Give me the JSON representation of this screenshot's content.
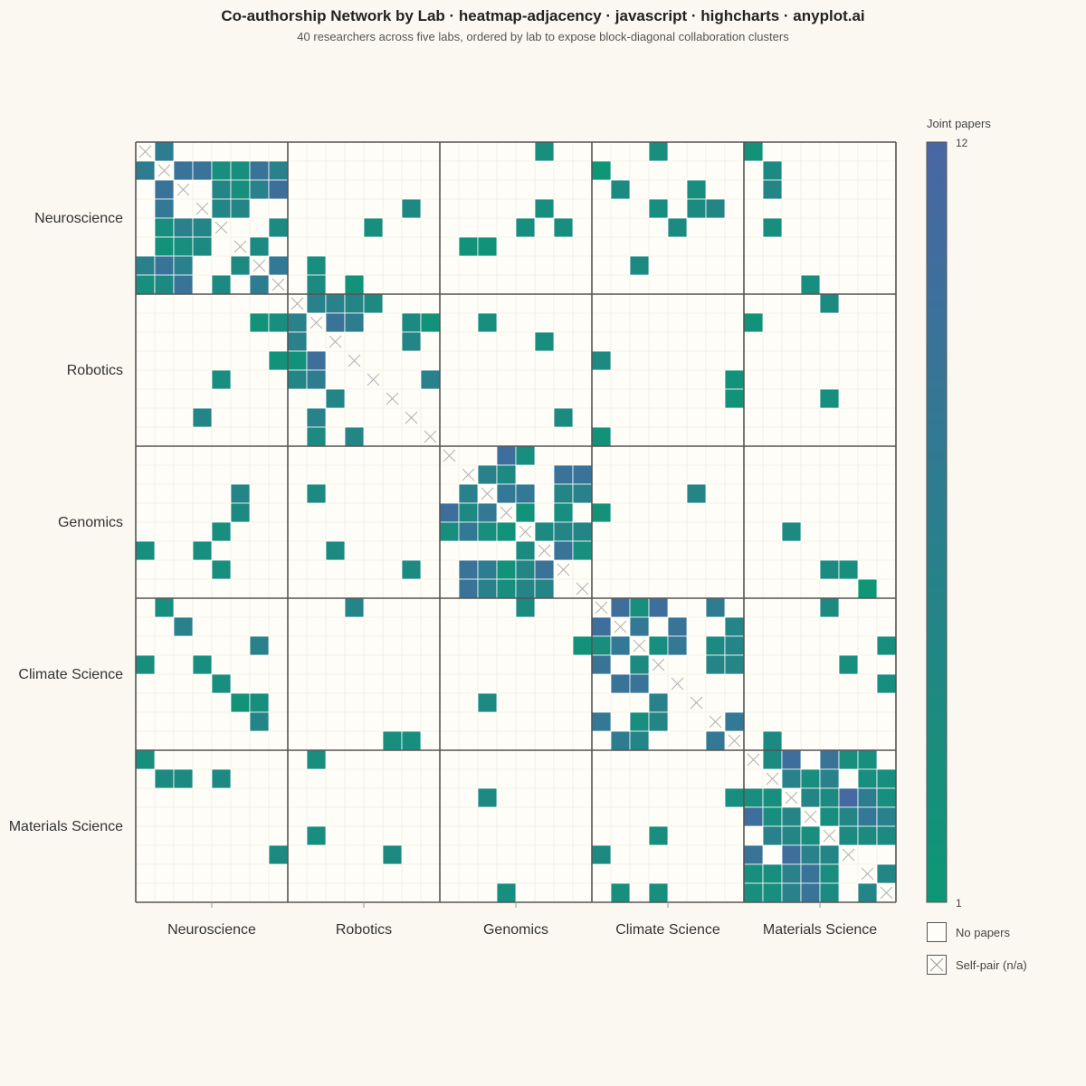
{
  "title": "Co-authorship Network by Lab · heatmap-adjacency · javascript · highcharts · anyplot.ai",
  "subtitle": "40 researchers across five labs, ordered by lab to expose block-diagonal collaboration clusters",
  "colors": {
    "background": "#faf8f1",
    "empty_cell": "#fefdf7",
    "scale_min": "#0d9775",
    "scale_max": "#4966a5",
    "grid": "#ede9d6",
    "block_border": "#555555",
    "self_pair": "#b0b0b0"
  },
  "legend": {
    "title": "Joint papers",
    "min_label": "1",
    "max_label": "12",
    "no_papers_label": "No papers",
    "self_pair_label": "Self-pair (n/a)"
  },
  "chart_data": {
    "type": "heatmap",
    "title": "Co-authorship Network by Lab · heatmap-adjacency · javascript · highcharts · anyplot.ai",
    "subtitle": "40 researchers across five labs, ordered by lab to expose block-diagonal collaboration clusters",
    "groups": [
      "Neuroscience",
      "Robotics",
      "Genomics",
      "Climate Science",
      "Materials Science"
    ],
    "group_size": 8,
    "node_count": 40,
    "value_range": [
      1,
      12
    ],
    "diagonal": "self-pair",
    "note_on_values": "cell values are joint-paper counts estimated from color; 0 = no papers",
    "matrix": [
      [
        0,
        7,
        0,
        0,
        0,
        0,
        0,
        0,
        0,
        0,
        0,
        0,
        0,
        0,
        0,
        0,
        0,
        0,
        0,
        0,
        0,
        3,
        0,
        0,
        0,
        0,
        0,
        3,
        0,
        0,
        0,
        0,
        2,
        0,
        0,
        0,
        0,
        0,
        0,
        0
      ],
      [
        7,
        0,
        9,
        9,
        3,
        3,
        9,
        6,
        0,
        0,
        0,
        0,
        0,
        0,
        0,
        0,
        0,
        0,
        0,
        0,
        0,
        0,
        0,
        0,
        1,
        0,
        0,
        0,
        0,
        0,
        0,
        0,
        0,
        4,
        0,
        0,
        0,
        0,
        0,
        0
      ],
      [
        0,
        9,
        0,
        0,
        5,
        3,
        6,
        10,
        0,
        0,
        0,
        0,
        0,
        0,
        0,
        0,
        0,
        0,
        0,
        0,
        0,
        0,
        0,
        0,
        0,
        4,
        0,
        0,
        0,
        3,
        0,
        0,
        0,
        5,
        0,
        0,
        0,
        0,
        0,
        0
      ],
      [
        0,
        8,
        0,
        0,
        5,
        5,
        0,
        0,
        0,
        0,
        0,
        0,
        0,
        0,
        4,
        0,
        0,
        0,
        0,
        0,
        0,
        3,
        0,
        0,
        0,
        0,
        0,
        3,
        0,
        4,
        5,
        0,
        0,
        0,
        0,
        0,
        0,
        0,
        0,
        0
      ],
      [
        0,
        3,
        6,
        5,
        0,
        0,
        0,
        4,
        0,
        0,
        0,
        0,
        3,
        0,
        0,
        0,
        0,
        0,
        0,
        0,
        3,
        0,
        3,
        0,
        0,
        0,
        0,
        0,
        4,
        0,
        0,
        0,
        0,
        3,
        0,
        0,
        0,
        0,
        0,
        0
      ],
      [
        0,
        2,
        3,
        4,
        0,
        0,
        4,
        0,
        0,
        0,
        0,
        0,
        0,
        0,
        0,
        0,
        0,
        2,
        2,
        0,
        0,
        0,
        0,
        0,
        0,
        0,
        0,
        0,
        0,
        0,
        0,
        0,
        0,
        0,
        0,
        0,
        0,
        0,
        0,
        0
      ],
      [
        6,
        9,
        6,
        0,
        0,
        4,
        0,
        8,
        0,
        3,
        0,
        0,
        0,
        0,
        0,
        0,
        0,
        0,
        0,
        0,
        0,
        0,
        0,
        0,
        0,
        0,
        4,
        0,
        0,
        0,
        0,
        0,
        0,
        0,
        0,
        0,
        0,
        0,
        0,
        0
      ],
      [
        3,
        4,
        9,
        0,
        4,
        0,
        7,
        0,
        0,
        4,
        0,
        2,
        0,
        0,
        0,
        0,
        0,
        0,
        0,
        0,
        0,
        0,
        0,
        0,
        0,
        0,
        0,
        0,
        0,
        0,
        0,
        0,
        0,
        0,
        0,
        3,
        0,
        0,
        0,
        0
      ],
      [
        0,
        0,
        0,
        0,
        0,
        0,
        0,
        0,
        0,
        6,
        6,
        5,
        4,
        0,
        0,
        0,
        0,
        0,
        0,
        0,
        0,
        0,
        0,
        0,
        0,
        0,
        0,
        0,
        0,
        0,
        0,
        0,
        0,
        0,
        0,
        0,
        4,
        0,
        0,
        0
      ],
      [
        0,
        0,
        0,
        0,
        0,
        0,
        2,
        3,
        6,
        0,
        9,
        7,
        0,
        0,
        4,
        2,
        0,
        0,
        3,
        0,
        0,
        0,
        0,
        0,
        0,
        0,
        0,
        0,
        0,
        0,
        0,
        0,
        2,
        0,
        0,
        0,
        0,
        0,
        0,
        0
      ],
      [
        0,
        0,
        0,
        0,
        0,
        0,
        0,
        0,
        6,
        0,
        0,
        0,
        0,
        0,
        5,
        0,
        0,
        0,
        0,
        0,
        0,
        3,
        0,
        0,
        0,
        0,
        0,
        0,
        0,
        0,
        0,
        0,
        0,
        0,
        0,
        0,
        0,
        0,
        0,
        0
      ],
      [
        0,
        0,
        0,
        0,
        0,
        0,
        0,
        2,
        2,
        10,
        0,
        0,
        0,
        0,
        0,
        0,
        0,
        0,
        0,
        0,
        0,
        0,
        0,
        0,
        4,
        0,
        0,
        0,
        0,
        0,
        0,
        0,
        0,
        0,
        0,
        0,
        0,
        0,
        0,
        0
      ],
      [
        0,
        0,
        0,
        0,
        3,
        0,
        0,
        0,
        5,
        7,
        0,
        0,
        0,
        0,
        0,
        6,
        0,
        0,
        0,
        0,
        0,
        0,
        0,
        0,
        0,
        0,
        0,
        0,
        0,
        0,
        0,
        2,
        0,
        0,
        0,
        0,
        0,
        0,
        0,
        0
      ],
      [
        0,
        0,
        0,
        0,
        0,
        0,
        0,
        0,
        0,
        0,
        5,
        0,
        0,
        0,
        0,
        0,
        0,
        0,
        0,
        0,
        0,
        0,
        0,
        0,
        0,
        0,
        0,
        0,
        0,
        0,
        0,
        2,
        0,
        0,
        0,
        0,
        3,
        0,
        0,
        0
      ],
      [
        0,
        0,
        0,
        5,
        0,
        0,
        0,
        0,
        0,
        6,
        0,
        0,
        0,
        0,
        0,
        0,
        0,
        0,
        0,
        0,
        0,
        0,
        4,
        0,
        0,
        0,
        0,
        0,
        0,
        0,
        0,
        0,
        0,
        0,
        0,
        0,
        0,
        0,
        0,
        0
      ],
      [
        0,
        0,
        0,
        0,
        0,
        0,
        0,
        0,
        0,
        4,
        0,
        5,
        0,
        0,
        0,
        0,
        0,
        0,
        0,
        0,
        0,
        0,
        0,
        0,
        2,
        0,
        0,
        0,
        0,
        0,
        0,
        0,
        0,
        0,
        0,
        0,
        0,
        0,
        0,
        0
      ],
      [
        0,
        0,
        0,
        0,
        0,
        0,
        0,
        0,
        0,
        0,
        0,
        0,
        0,
        0,
        0,
        0,
        0,
        0,
        0,
        10,
        3,
        0,
        0,
        0,
        0,
        0,
        0,
        0,
        0,
        0,
        0,
        0,
        0,
        0,
        0,
        0,
        0,
        0,
        0,
        0
      ],
      [
        0,
        0,
        0,
        0,
        0,
        0,
        0,
        0,
        0,
        0,
        0,
        0,
        0,
        0,
        0,
        0,
        0,
        0,
        6,
        4,
        0,
        0,
        9,
        9,
        0,
        0,
        0,
        0,
        0,
        0,
        0,
        0,
        0,
        0,
        0,
        0,
        0,
        0,
        0,
        0
      ],
      [
        0,
        0,
        0,
        0,
        0,
        5,
        0,
        0,
        0,
        4,
        0,
        0,
        0,
        0,
        0,
        0,
        0,
        6,
        0,
        8,
        8,
        0,
        5,
        6,
        0,
        0,
        0,
        0,
        0,
        5,
        0,
        0,
        0,
        0,
        0,
        0,
        0,
        0,
        0,
        0
      ],
      [
        0,
        0,
        0,
        0,
        0,
        4,
        0,
        0,
        0,
        0,
        0,
        0,
        0,
        0,
        0,
        0,
        10,
        4,
        8,
        0,
        2,
        0,
        3,
        0,
        2,
        0,
        0,
        0,
        0,
        0,
        0,
        0,
        0,
        0,
        0,
        0,
        0,
        0,
        0,
        0
      ],
      [
        0,
        0,
        0,
        0,
        3,
        0,
        0,
        0,
        0,
        0,
        0,
        0,
        0,
        0,
        0,
        0,
        3,
        8,
        3,
        2,
        0,
        4,
        5,
        5,
        0,
        0,
        0,
        0,
        0,
        0,
        0,
        0,
        0,
        0,
        4,
        0,
        0,
        0,
        0,
        0
      ],
      [
        3,
        0,
        0,
        3,
        0,
        0,
        0,
        0,
        0,
        0,
        4,
        0,
        0,
        0,
        0,
        0,
        0,
        0,
        0,
        0,
        4,
        0,
        9,
        3,
        0,
        0,
        0,
        0,
        0,
        0,
        0,
        0,
        0,
        0,
        0,
        0,
        0,
        0,
        0,
        0
      ],
      [
        0,
        0,
        0,
        0,
        3,
        0,
        0,
        0,
        0,
        0,
        0,
        0,
        0,
        0,
        4,
        0,
        0,
        9,
        7,
        2,
        5,
        9,
        0,
        0,
        0,
        0,
        0,
        0,
        0,
        0,
        0,
        0,
        0,
        0,
        0,
        0,
        4,
        3,
        0,
        0
      ],
      [
        0,
        0,
        0,
        0,
        0,
        0,
        0,
        0,
        0,
        0,
        0,
        0,
        0,
        0,
        0,
        0,
        0,
        9,
        6,
        3,
        5,
        5,
        0,
        0,
        0,
        0,
        0,
        0,
        0,
        0,
        0,
        0,
        0,
        0,
        0,
        0,
        0,
        0,
        1,
        0
      ],
      [
        0,
        3,
        0,
        0,
        0,
        0,
        0,
        0,
        0,
        0,
        0,
        5,
        0,
        0,
        0,
        0,
        0,
        0,
        0,
        0,
        4,
        0,
        0,
        0,
        0,
        10,
        3,
        10,
        0,
        0,
        7,
        0,
        0,
        0,
        0,
        0,
        4,
        0,
        0,
        0
      ],
      [
        0,
        0,
        6,
        0,
        0,
        0,
        0,
        0,
        0,
        0,
        0,
        0,
        0,
        0,
        0,
        0,
        0,
        0,
        0,
        0,
        0,
        0,
        0,
        0,
        10,
        0,
        8,
        0,
        9,
        0,
        0,
        5,
        0,
        0,
        0,
        0,
        0,
        0,
        0,
        0
      ],
      [
        0,
        0,
        0,
        0,
        0,
        0,
        6,
        0,
        0,
        0,
        0,
        0,
        0,
        0,
        0,
        0,
        0,
        0,
        0,
        0,
        0,
        0,
        0,
        2,
        3,
        8,
        0,
        3,
        8,
        0,
        4,
        5,
        0,
        0,
        0,
        0,
        0,
        0,
        0,
        3
      ],
      [
        3,
        0,
        0,
        3,
        0,
        0,
        0,
        0,
        0,
        0,
        0,
        0,
        0,
        0,
        0,
        0,
        0,
        0,
        0,
        0,
        0,
        0,
        0,
        0,
        9,
        0,
        4,
        0,
        0,
        0,
        5,
        5,
        0,
        0,
        0,
        0,
        0,
        3,
        0,
        0
      ],
      [
        0,
        0,
        0,
        0,
        3,
        0,
        0,
        0,
        0,
        0,
        0,
        0,
        0,
        0,
        0,
        0,
        0,
        0,
        0,
        0,
        0,
        0,
        0,
        0,
        0,
        9,
        9,
        0,
        0,
        0,
        0,
        0,
        0,
        0,
        0,
        0,
        0,
        0,
        0,
        3
      ],
      [
        0,
        0,
        0,
        0,
        0,
        2,
        3,
        0,
        0,
        0,
        0,
        0,
        0,
        0,
        0,
        0,
        0,
        0,
        4,
        0,
        0,
        0,
        0,
        0,
        0,
        0,
        0,
        6,
        0,
        0,
        0,
        0,
        0,
        0,
        0,
        0,
        0,
        0,
        0,
        0
      ],
      [
        0,
        0,
        0,
        0,
        0,
        0,
        5,
        0,
        0,
        0,
        0,
        0,
        0,
        0,
        0,
        0,
        0,
        0,
        0,
        0,
        0,
        0,
        0,
        0,
        8,
        0,
        3,
        5,
        0,
        0,
        0,
        8,
        0,
        0,
        0,
        0,
        0,
        0,
        0,
        0
      ],
      [
        0,
        0,
        0,
        0,
        0,
        0,
        0,
        0,
        0,
        0,
        0,
        0,
        0,
        3,
        3,
        0,
        0,
        0,
        0,
        0,
        0,
        0,
        0,
        0,
        0,
        7,
        5,
        0,
        0,
        0,
        8,
        0,
        0,
        4,
        0,
        0,
        0,
        0,
        0,
        0
      ],
      [
        3,
        0,
        0,
        0,
        0,
        0,
        0,
        0,
        0,
        3,
        0,
        0,
        0,
        0,
        0,
        0,
        0,
        0,
        0,
        0,
        0,
        0,
        0,
        0,
        0,
        0,
        0,
        0,
        0,
        0,
        0,
        0,
        0,
        4,
        10,
        0,
        9,
        3,
        3,
        0
      ],
      [
        0,
        4,
        4,
        0,
        4,
        0,
        0,
        0,
        0,
        0,
        0,
        0,
        0,
        0,
        0,
        0,
        0,
        0,
        0,
        0,
        0,
        0,
        0,
        0,
        0,
        0,
        0,
        0,
        0,
        0,
        0,
        0,
        0,
        0,
        6,
        3,
        6,
        0,
        3,
        3
      ],
      [
        0,
        0,
        0,
        0,
        0,
        0,
        0,
        0,
        0,
        0,
        0,
        0,
        0,
        0,
        0,
        0,
        0,
        0,
        4,
        0,
        0,
        0,
        0,
        0,
        0,
        0,
        0,
        0,
        0,
        0,
        0,
        3,
        3,
        3,
        0,
        5,
        4,
        11,
        7,
        3
      ],
      [
        0,
        0,
        0,
        0,
        0,
        0,
        0,
        0,
        0,
        0,
        0,
        0,
        0,
        0,
        0,
        0,
        0,
        0,
        0,
        0,
        0,
        0,
        0,
        0,
        0,
        0,
        0,
        0,
        0,
        0,
        0,
        0,
        10,
        3,
        5,
        0,
        3,
        5,
        8,
        6
      ],
      [
        0,
        0,
        0,
        0,
        0,
        0,
        0,
        0,
        0,
        3,
        0,
        0,
        0,
        0,
        0,
        0,
        0,
        0,
        0,
        0,
        0,
        0,
        0,
        0,
        0,
        0,
        0,
        3,
        0,
        0,
        0,
        0,
        0,
        6,
        5,
        3,
        0,
        4,
        4,
        4
      ],
      [
        0,
        0,
        0,
        0,
        0,
        0,
        0,
        4,
        0,
        0,
        0,
        0,
        0,
        4,
        0,
        0,
        0,
        0,
        0,
        0,
        0,
        0,
        0,
        0,
        4,
        0,
        0,
        0,
        0,
        0,
        0,
        0,
        9,
        0,
        10,
        6,
        5,
        0,
        0,
        0
      ],
      [
        0,
        0,
        0,
        0,
        0,
        0,
        0,
        0,
        0,
        0,
        0,
        0,
        0,
        0,
        0,
        0,
        0,
        0,
        0,
        0,
        0,
        0,
        0,
        0,
        0,
        0,
        0,
        0,
        0,
        0,
        0,
        0,
        3,
        3,
        6,
        9,
        3,
        0,
        0,
        5
      ],
      [
        0,
        0,
        0,
        0,
        0,
        0,
        0,
        0,
        0,
        0,
        0,
        0,
        0,
        0,
        0,
        0,
        0,
        0,
        0,
        3,
        0,
        0,
        0,
        0,
        0,
        3,
        0,
        3,
        0,
        0,
        0,
        0,
        3,
        3,
        6,
        9,
        4,
        0,
        5,
        0
      ]
    ]
  }
}
